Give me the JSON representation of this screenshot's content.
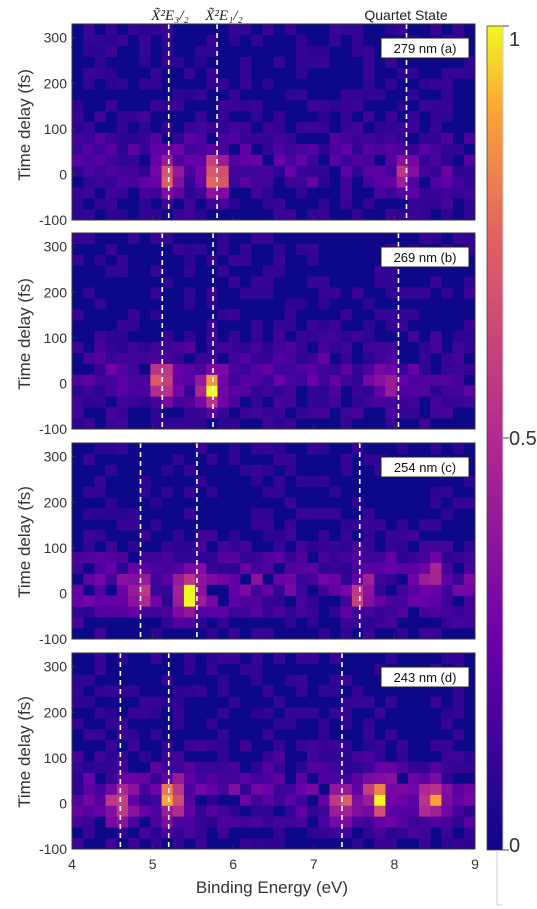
{
  "chart_data": {
    "type": "heatmap",
    "xlabel": "Binding Energy (eV)",
    "ylabel": "Time delay (fs)",
    "xlim": [
      4,
      9
    ],
    "ylim": [
      -100,
      330
    ],
    "x_ticks": [
      "4",
      "5",
      "6",
      "7",
      "8",
      "9"
    ],
    "y_ticks": [
      "-100",
      "0",
      "100",
      "200",
      "300"
    ],
    "top_labels": [
      {
        "text": "X̃²E₃/₂",
        "x": 5.2
      },
      {
        "text": "X̃²E₁/₂",
        "x": 5.8
      },
      {
        "text": "Quartet State",
        "x": 8.15
      }
    ],
    "colorbar": {
      "ticks": [
        "1",
        "0.5",
        "0"
      ],
      "colormap": "plasma",
      "range": [
        0,
        1
      ]
    },
    "panels": [
      {
        "label": "279 nm (a)",
        "dashed_lines": [
          5.2,
          5.8,
          8.15
        ],
        "peaks": [
          {
            "energy": 5.2,
            "delay": 0,
            "intensity": 0.7
          },
          {
            "energy": 5.8,
            "delay": 0,
            "intensity": 1.0
          },
          {
            "energy": 8.1,
            "delay": 0,
            "intensity": 0.35
          }
        ]
      },
      {
        "label": "269 nm (b)",
        "dashed_lines": [
          5.12,
          5.75,
          8.05
        ],
        "peaks": [
          {
            "energy": 5.12,
            "delay": 0,
            "intensity": 0.75
          },
          {
            "energy": 5.72,
            "delay": -10,
            "intensity": 0.95
          },
          {
            "energy": 7.9,
            "delay": 0,
            "intensity": 0.35
          }
        ]
      },
      {
        "label": "254 nm (c)",
        "dashed_lines": [
          4.85,
          5.55,
          7.57
        ],
        "peaks": [
          {
            "energy": 4.85,
            "delay": 0,
            "intensity": 0.5
          },
          {
            "energy": 5.45,
            "delay": -5,
            "intensity": 1.0
          },
          {
            "energy": 7.57,
            "delay": 0,
            "intensity": 0.45
          },
          {
            "energy": 8.5,
            "delay": 40,
            "intensity": 0.35
          }
        ]
      },
      {
        "label": "243 nm (d)",
        "dashed_lines": [
          4.6,
          5.2,
          7.35
        ],
        "peaks": [
          {
            "energy": 4.6,
            "delay": 0,
            "intensity": 0.6
          },
          {
            "energy": 5.25,
            "delay": 10,
            "intensity": 0.95
          },
          {
            "energy": 7.35,
            "delay": 0,
            "intensity": 0.55
          },
          {
            "energy": 7.8,
            "delay": 10,
            "intensity": 0.9
          },
          {
            "energy": 8.45,
            "delay": 10,
            "intensity": 0.75
          }
        ]
      }
    ]
  }
}
